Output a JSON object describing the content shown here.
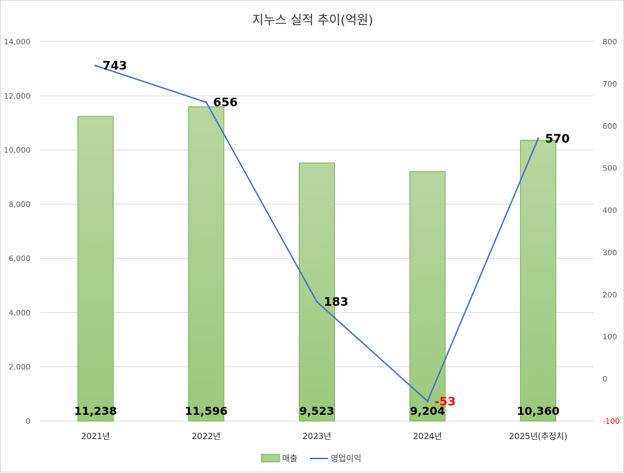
{
  "chart_data": {
    "type": "bar+line",
    "title": "지누스 실적 추이(억원)",
    "categories": [
      "2021년",
      "2022년",
      "2023년",
      "2024년",
      "2025년(추정치)"
    ],
    "series": [
      {
        "name": "매출",
        "type": "bar",
        "axis": "left",
        "values": [
          11238,
          11596,
          9523,
          9204,
          10360
        ],
        "labels": [
          "11,238",
          "11,596",
          "9,523",
          "9,204",
          "10,360"
        ],
        "color": "#a9d08e"
      },
      {
        "name": "영업이익",
        "type": "line",
        "axis": "right",
        "values": [
          743,
          656,
          183,
          -53,
          570
        ],
        "labels": [
          "743",
          "656",
          "183",
          "-53",
          "570"
        ],
        "color": "#4472c4",
        "negative_label_color": "#ff0000"
      }
    ],
    "y_left": {
      "ylim": [
        0,
        14000
      ],
      "ticks": [
        "0",
        "2,000",
        "4,000",
        "6,000",
        "8,000",
        "10,000",
        "12,000",
        "14,000"
      ]
    },
    "y_right": {
      "ylim": [
        -100,
        800
      ],
      "ticks": [
        "-100",
        "0",
        "100",
        "200",
        "300",
        "400",
        "500",
        "600",
        "700",
        "800"
      ],
      "negative_tick_color": "#ff0000"
    },
    "grid": true,
    "legend": "bottom"
  }
}
